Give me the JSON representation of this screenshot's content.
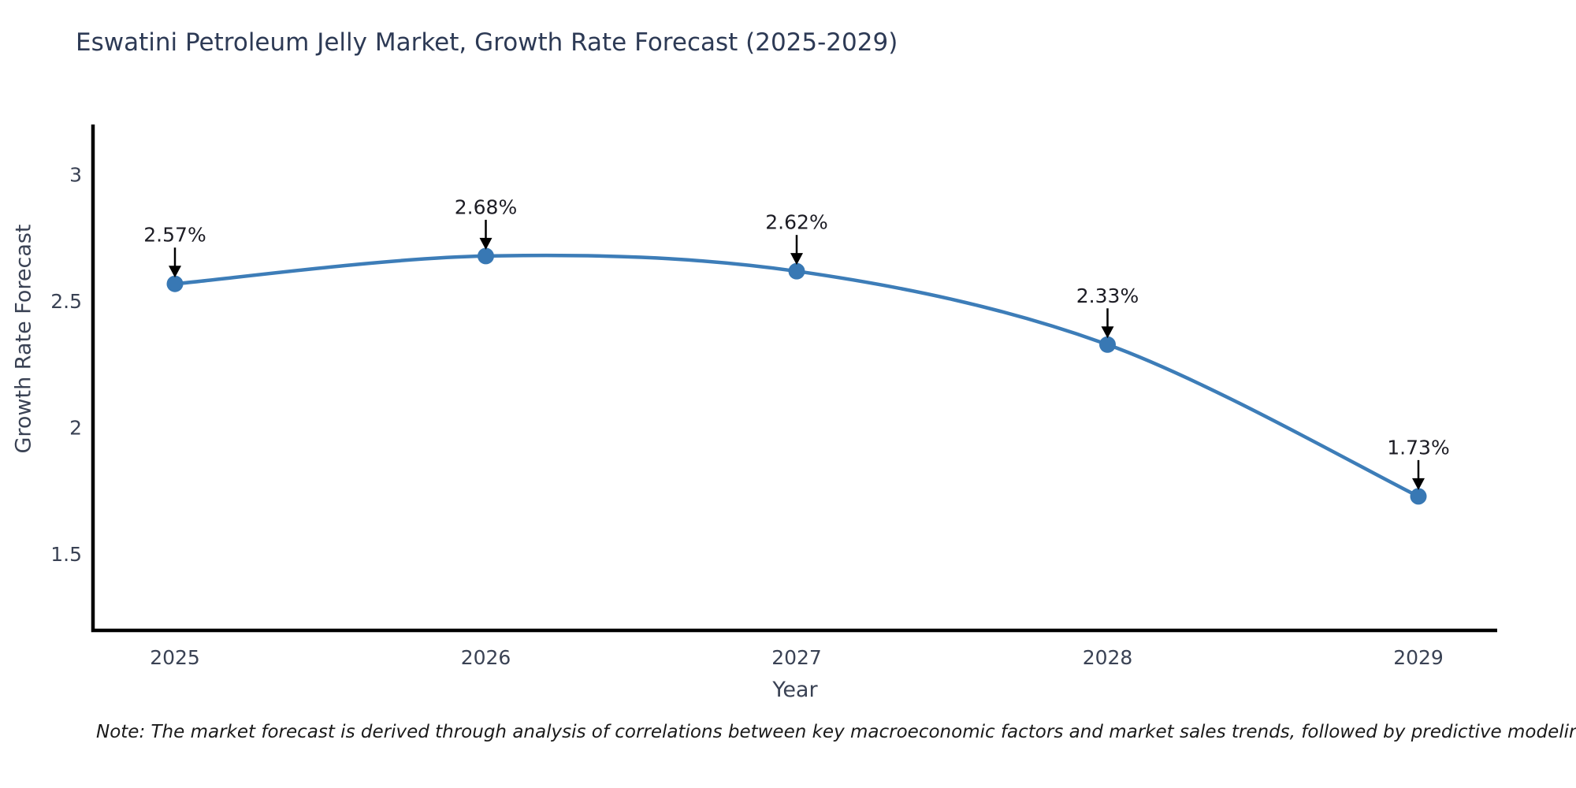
{
  "title": "Eswatini Petroleum Jelly Market, Growth Rate Forecast (2025-2029)",
  "note": "Note: The market forecast is derived through analysis of correlations between key macroeconomic factors and market sales trends, followed by predictive modeling to project future sales",
  "chart_data": {
    "type": "line",
    "title": "Eswatini Petroleum Jelly Market, Growth Rate Forecast (2025-2029)",
    "categories": [
      "2025",
      "2026",
      "2027",
      "2028",
      "2029"
    ],
    "values": [
      2.57,
      2.68,
      2.62,
      2.33,
      1.73
    ],
    "point_labels": [
      "2.57%",
      "2.68%",
      "2.62%",
      "2.33%",
      "1.73%"
    ],
    "xlabel": "Year",
    "ylabel": "Growth Rate Forecast",
    "ylim": [
      1.2,
      3.2
    ],
    "yticks": [
      3,
      2.5,
      2,
      1.5
    ],
    "ytick_labels": [
      "3",
      "2.5",
      "2",
      "1.5"
    ],
    "grid": false,
    "legend": "none",
    "smooth": true,
    "line_color": "#3d7db8",
    "marker_color": "#3878b4",
    "arrow_color": "#000000"
  },
  "colors": {
    "background": "#ffffff",
    "title_text": "#2d3a55",
    "tick_text": "#3a4254",
    "axis_line": "#000000",
    "annotation_text": "#1c1c24",
    "note_text": "#1a1a1a"
  }
}
